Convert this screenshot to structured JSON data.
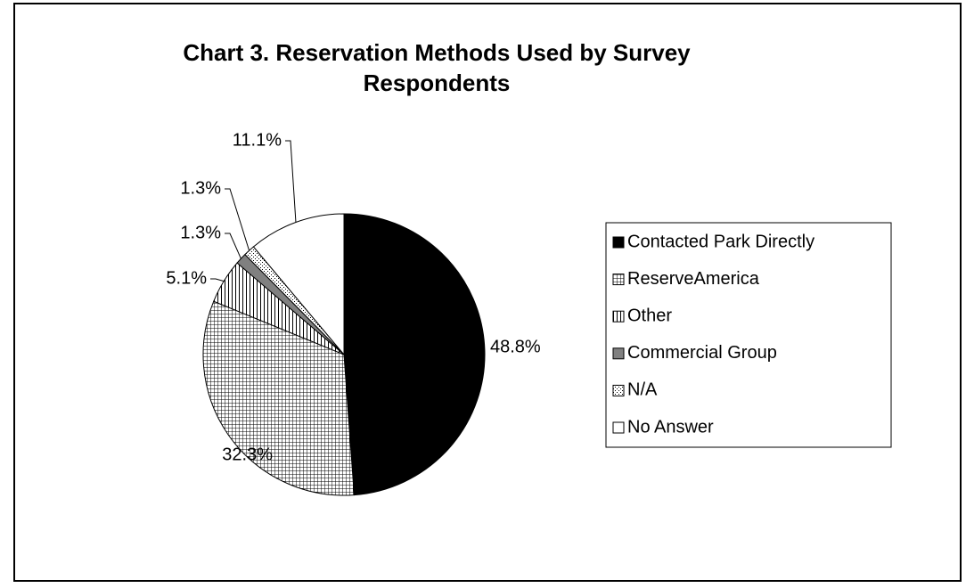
{
  "chart_data": {
    "type": "pie",
    "title": "Chart 3. Reservation Methods Used by Survey Respondents",
    "categories": [
      "Contacted Park Directly",
      "ReserveAmerica",
      "Other",
      "Commercial Group",
      "N/A",
      "No Answer"
    ],
    "values": [
      48.8,
      32.3,
      5.1,
      1.3,
      1.3,
      11.1
    ],
    "value_labels": [
      "48.8%",
      "32.3%",
      "5.1%",
      "1.3%",
      "1.3%",
      "11.1%"
    ],
    "colors": [
      "#000000",
      "#a8a8a8",
      "#c8c8c8",
      "#808080",
      "#d8d8d8",
      "#ffffff"
    ],
    "legend": "right"
  }
}
